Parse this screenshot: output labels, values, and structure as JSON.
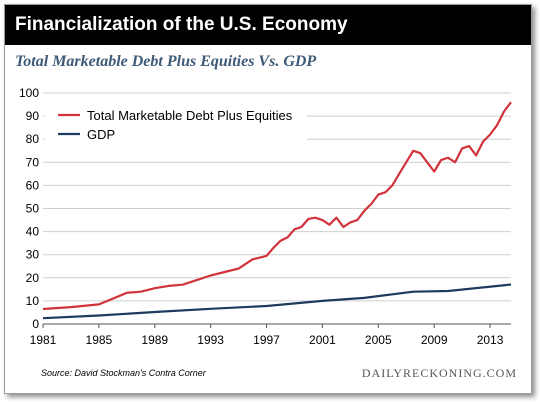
{
  "header": {
    "title": "Financialization of the U.S. Economy"
  },
  "chart_data": {
    "type": "line",
    "title": "Total Marketable Debt Plus Equities Vs. GDP",
    "xlabel": "",
    "ylabel": "",
    "xlim": [
      1981,
      2014.5
    ],
    "ylim": [
      0,
      100
    ],
    "x_ticks": [
      1981,
      1985,
      1989,
      1993,
      1997,
      2001,
      2005,
      2009,
      2013
    ],
    "y_ticks": [
      0,
      10,
      20,
      30,
      40,
      50,
      60,
      70,
      80,
      90,
      100
    ],
    "grid": "horizontal",
    "legend": "top-left",
    "series": [
      {
        "name": "Total Marketable Debt Plus Equities",
        "color": "#d0343a",
        "x": [
          1981,
          1983,
          1985,
          1986,
          1987,
          1988,
          1989,
          1990,
          1991,
          1992,
          1993,
          1994,
          1995,
          1996,
          1997,
          1997.5,
          1998,
          1998.5,
          1999,
          1999.5,
          2000,
          2000.5,
          2001,
          2001.5,
          2002,
          2002.5,
          2003,
          2003.5,
          2004,
          2004.5,
          2005,
          2005.5,
          2006,
          2006.5,
          2007,
          2007.5,
          2008,
          2008.5,
          2009,
          2009.5,
          2010,
          2010.5,
          2011,
          2011.5,
          2012,
          2012.5,
          2013,
          2013.5,
          2014,
          2014.5
        ],
        "values": [
          6.5,
          7.3,
          8.5,
          11,
          13.5,
          14,
          15.5,
          16.5,
          17,
          19,
          21,
          22.5,
          24,
          28,
          29.5,
          33,
          36,
          37.5,
          41,
          42,
          45.5,
          46,
          45,
          43,
          46,
          42,
          44,
          45,
          49,
          52,
          56,
          57,
          60,
          65,
          70,
          75,
          74,
          70,
          66,
          71,
          72,
          70,
          76,
          77,
          73,
          79,
          82,
          86,
          92,
          96
        ]
      },
      {
        "name": "GDP",
        "color": "#1d3b5e",
        "x": [
          1981,
          1985,
          1989,
          1993,
          1997,
          2001,
          2004,
          2007.5,
          2010,
          2014.5
        ],
        "values": [
          2.5,
          3.7,
          5.2,
          6.6,
          7.8,
          10,
          11.3,
          14,
          14.3,
          17.1
        ]
      }
    ]
  },
  "footer": {
    "source": "Source: David Stockman's Contra Corner",
    "brand": "DAILYRECKONING.COM"
  }
}
